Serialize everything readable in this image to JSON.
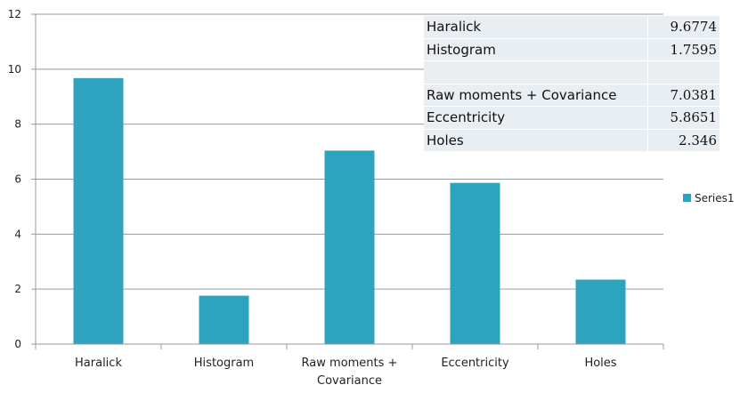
{
  "chart_data": {
    "type": "bar",
    "categories": [
      "Haralick",
      "Histogram",
      "Raw moments + Covariance",
      "Eccentricity",
      "Holes"
    ],
    "category_lines": [
      [
        "Haralick"
      ],
      [
        "Histogram"
      ],
      [
        "Raw moments +",
        "Covariance"
      ],
      [
        "Eccentricity"
      ],
      [
        "Holes"
      ]
    ],
    "series": [
      {
        "name": "Series1",
        "values": [
          9.6774,
          1.7595,
          7.0381,
          5.8651,
          2.346
        ],
        "color": "#2ea3bf"
      }
    ],
    "ylim": [
      0,
      12
    ],
    "yticks": [
      0,
      2,
      4,
      6,
      8,
      10,
      12
    ],
    "grid": true,
    "legend": "right",
    "title": "",
    "xlabel": "",
    "ylabel": ""
  },
  "data_table": {
    "rows": [
      {
        "name": "Haralick",
        "value": "9.6774"
      },
      {
        "name": "Histogram",
        "value": "1.7595"
      },
      {
        "name": "Raw moments + Covariance",
        "value": "7.0381"
      },
      {
        "name": "Eccentricity",
        "value": "5.8651"
      },
      {
        "name": "Holes",
        "value": "2.346"
      }
    ]
  }
}
